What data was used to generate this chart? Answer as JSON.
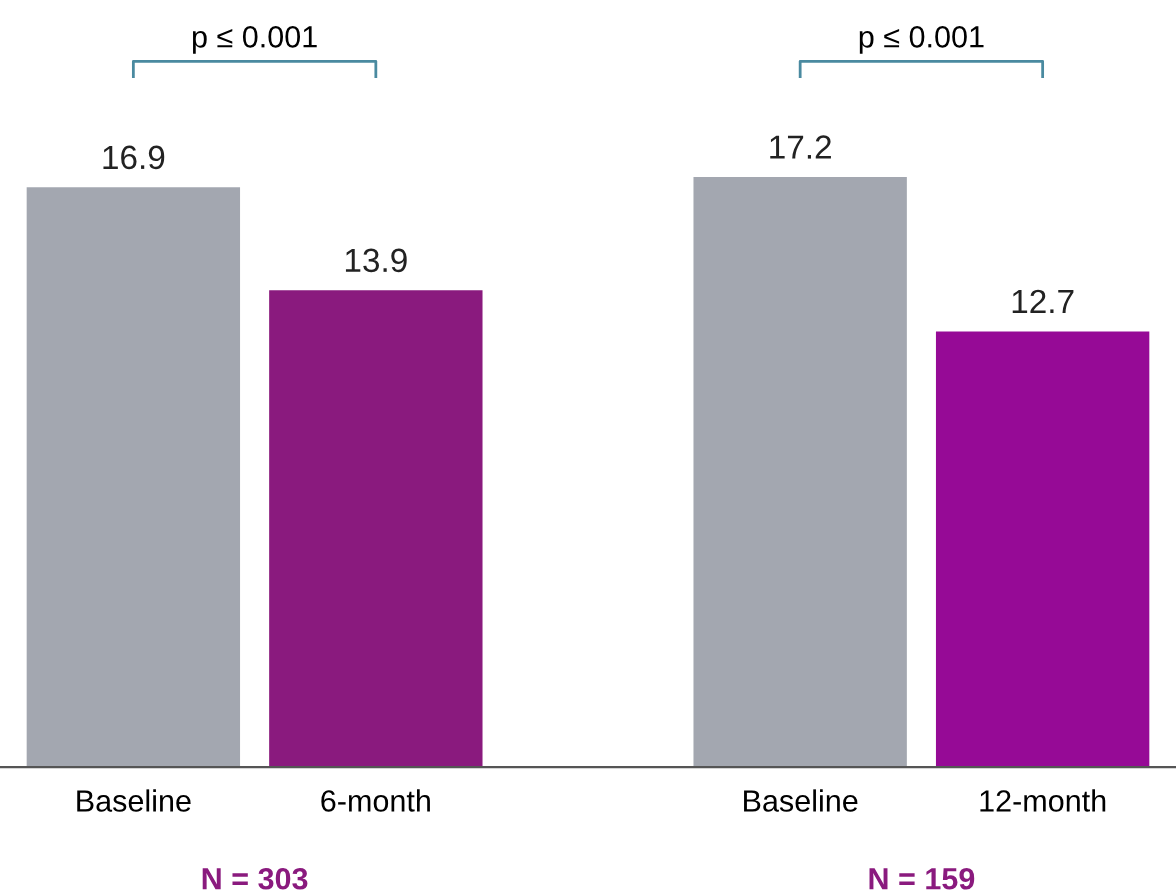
{
  "chart_data": {
    "type": "bar",
    "categories": [
      "Baseline",
      "6-month",
      "Baseline",
      "12-month"
    ],
    "values": [
      16.9,
      13.9,
      17.2,
      12.7
    ],
    "colors": [
      "#a3a7b0",
      "#8a1a7e",
      "#a3a7b0",
      "#960a96"
    ],
    "data_labels": true,
    "grid": false,
    "legend": false,
    "annotations": [
      "p ≤ 0.001",
      "p ≤ 0.001",
      "N = 303",
      "N = 159"
    ]
  }
}
